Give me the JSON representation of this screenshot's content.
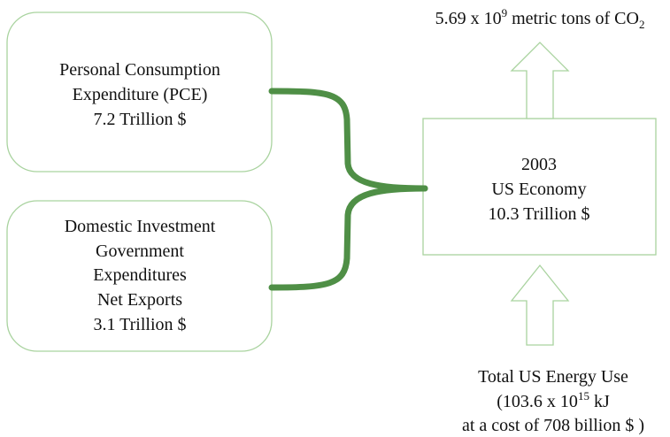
{
  "top_label": {
    "parts": [
      "5.69 x 10",
      "9",
      " metric tons of CO",
      "2"
    ]
  },
  "boxes": [
    {
      "lines": [
        "Personal Consumption",
        "Expenditure (PCE)",
        "7.2 Trillion $"
      ]
    },
    {
      "lines": [
        "Domestic Investment",
        "Government",
        "Expenditures",
        "Net Exports",
        "3.1 Trillion $"
      ]
    }
  ],
  "center": {
    "lines": [
      "2003",
      "US Economy",
      "10.3 Trillion $"
    ]
  },
  "bottom_label": {
    "line1": "Total US Energy Use",
    "line2_parts": [
      "(103.6 x 10",
      "15",
      " kJ"
    ],
    "line3": "at a cost of 708 billion $ )"
  }
}
